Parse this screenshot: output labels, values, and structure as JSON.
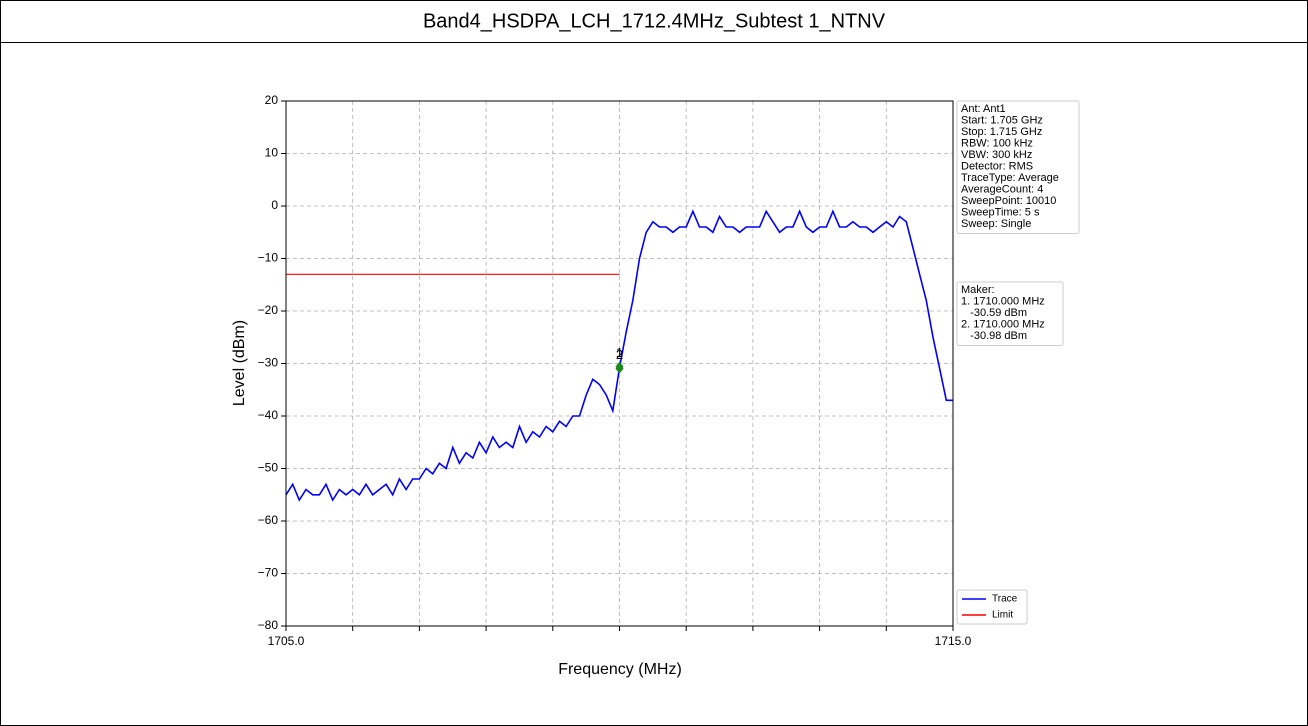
{
  "chart_data": {
    "type": "line",
    "title": "Band4_HSDPA_LCH_1712.4MHz_Subtest 1_NTNV",
    "x_label": "Frequency (MHz)",
    "y_label": "Level (dBm)",
    "xlim": [
      1705,
      1715
    ],
    "ylim": [
      -80,
      20
    ],
    "xticks": [
      {
        "value": 1705,
        "label": "1705.0"
      },
      {
        "value": 1715,
        "label": "1715.0"
      }
    ],
    "xminor_ticks": [
      1706,
      1707,
      1708,
      1709,
      1710,
      1711,
      1712,
      1713,
      1714
    ],
    "yticks": [
      {
        "value": -80,
        "label": "−80"
      },
      {
        "value": -70,
        "label": "−70"
      },
      {
        "value": -60,
        "label": "−60"
      },
      {
        "value": -50,
        "label": "−50"
      },
      {
        "value": -40,
        "label": "−40"
      },
      {
        "value": -30,
        "label": "−30"
      },
      {
        "value": -20,
        "label": "−20"
      },
      {
        "value": -10,
        "label": "−10"
      },
      0,
      10,
      20
    ],
    "grid": true,
    "legend": "lower right",
    "series": [
      {
        "name": "Trace",
        "color": "#0000ff",
        "x": [
          1705.0,
          1705.1,
          1705.2,
          1705.3,
          1705.4,
          1705.5,
          1705.6,
          1705.7,
          1705.8,
          1705.9,
          1706.0,
          1706.1,
          1706.2,
          1706.3,
          1706.4,
          1706.5,
          1706.6,
          1706.7,
          1706.8,
          1706.9,
          1707.0,
          1707.1,
          1707.2,
          1707.3,
          1707.4,
          1707.5,
          1707.6,
          1707.7,
          1707.8,
          1707.9,
          1708.0,
          1708.1,
          1708.2,
          1708.3,
          1708.4,
          1708.5,
          1708.6,
          1708.7,
          1708.8,
          1708.9,
          1709.0,
          1709.1,
          1709.2,
          1709.3,
          1709.4,
          1709.5,
          1709.6,
          1709.7,
          1709.8,
          1709.9,
          1710.0,
          1710.1,
          1710.2,
          1710.3,
          1710.4,
          1710.5,
          1710.6,
          1710.7,
          1710.8,
          1710.9,
          1711.0,
          1711.1,
          1711.2,
          1711.3,
          1711.4,
          1711.5,
          1711.6,
          1711.7,
          1711.8,
          1711.9,
          1712.0,
          1712.1,
          1712.2,
          1712.3,
          1712.4,
          1712.5,
          1712.6,
          1712.7,
          1712.8,
          1712.9,
          1713.0,
          1713.1,
          1713.2,
          1713.3,
          1713.4,
          1713.5,
          1713.6,
          1713.7,
          1713.8,
          1713.9,
          1714.0,
          1714.1,
          1714.2,
          1714.3,
          1714.4,
          1714.5,
          1714.6,
          1714.7,
          1714.8,
          1714.9,
          1715.0
        ],
        "values": [
          -55,
          -53,
          -56,
          -54,
          -55,
          -55,
          -53,
          -56,
          -54,
          -55,
          -54,
          -55,
          -53,
          -55,
          -54,
          -53,
          -55,
          -52,
          -54,
          -52,
          -52,
          -50,
          -51,
          -49,
          -50,
          -46,
          -49,
          -47,
          -48,
          -45,
          -47,
          -44,
          -46,
          -45,
          -46,
          -42,
          -45,
          -43,
          -44,
          -42,
          -43,
          -41,
          -42,
          -40,
          -40,
          -36,
          -33,
          -34,
          -36,
          -39,
          -30.8,
          -24,
          -18,
          -10,
          -5,
          -3,
          -4,
          -4,
          -5,
          -4,
          -4,
          -1,
          -4,
          -4,
          -5,
          -2,
          -4,
          -4,
          -5,
          -4,
          -4,
          -4,
          -1,
          -3,
          -5,
          -4,
          -4,
          -1,
          -4,
          -5,
          -4,
          -4,
          -1,
          -4,
          -4,
          -3,
          -4,
          -4,
          -5,
          -4,
          -3,
          -4,
          -2,
          -3,
          -8,
          -13,
          -18,
          -25,
          -31,
          -37,
          -37
        ]
      },
      {
        "name": "Limit",
        "color": "#ff0000",
        "x": [
          1705,
          1710
        ],
        "values": [
          -13,
          -13
        ]
      }
    ],
    "markers": [
      {
        "label": "1",
        "x": 1710,
        "y": -30.59
      },
      {
        "label": "2",
        "x": 1710,
        "y": -30.98
      }
    ],
    "info_box": [
      "Ant: Ant1",
      "Start: 1.705 GHz",
      "Stop: 1.715 GHz",
      "RBW: 100 kHz",
      "VBW: 300 kHz",
      "Detector: RMS",
      "TraceType: Average",
      "AverageCount: 4",
      "SweepPoint: 10010",
      "SweepTime: 5 s",
      "Sweep: Single"
    ],
    "marker_box": [
      "Maker:",
      "1. 1710.000 MHz",
      "   -30.59 dBm",
      "2. 1710.000 MHz",
      "   -30.98 dBm"
    ]
  }
}
